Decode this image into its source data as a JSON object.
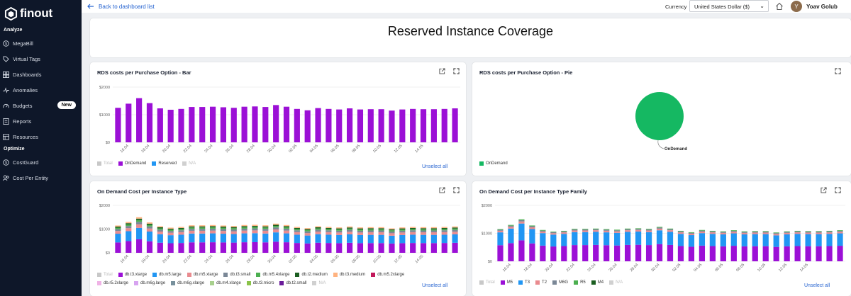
{
  "app": {
    "logo": "finout",
    "title": "Reserved Instance Coverage"
  },
  "sidebar": {
    "section_analyze": "Analyze",
    "section_optimize": "Optimize",
    "items": [
      {
        "label": "MegaBill",
        "icon": "dollar-circle-icon"
      },
      {
        "label": "Virtual Tags",
        "icon": "tag-icon"
      },
      {
        "label": "Dashboards",
        "icon": "grid-icon"
      },
      {
        "label": "Anomalies",
        "icon": "pulse-icon"
      },
      {
        "label": "Budgets",
        "icon": "gauge-icon",
        "badge": "New"
      },
      {
        "label": "Reports",
        "icon": "report-icon"
      },
      {
        "label": "Resources",
        "icon": "list-icon"
      },
      {
        "label": "CostGuard",
        "icon": "shield-dollar-icon"
      },
      {
        "label": "Cost Per Entity",
        "icon": "users-icon"
      }
    ]
  },
  "topbar": {
    "back": "Back to dashboard list",
    "currency_label": "Currency",
    "currency_value": "United States Dollar ($)",
    "user_initial": "Y",
    "user_name": "Yoav Golub"
  },
  "colors": {
    "accent": "#2563d0",
    "ondemand": "#9b10d6",
    "reserved": "#2196f3",
    "pie": "#15b862"
  },
  "widgets": {
    "bar": {
      "title": "RDS costs per Purchase Option - Bar",
      "unselect": "Unselect all"
    },
    "pie": {
      "title": "RDS costs per Purchase Option - Pie"
    },
    "type": {
      "title": "On Demand Cost per Instance Type",
      "unselect": "Unselect all"
    },
    "family": {
      "title": "On Demand Cost per Instance Type Family",
      "unselect": "Unselect all"
    }
  },
  "chart_data": [
    {
      "id": "bar",
      "type": "bar",
      "title": "RDS costs per Purchase Option - Bar",
      "yticks": [
        "$2000",
        "$1000",
        "$0"
      ],
      "ylim": [
        0,
        2000
      ],
      "xticks": [
        "16.04",
        "18.04",
        "20.04",
        "22.04",
        "24.04",
        "26.04",
        "28.04",
        "30.04",
        "02.05",
        "04.05",
        "06.05",
        "08.05",
        "10.05",
        "12.05",
        "14.05"
      ],
      "legend": [
        {
          "name": "Total",
          "color": "#c8c8c8",
          "dim": true
        },
        {
          "name": "OnDemand",
          "color": "#9b10d6"
        },
        {
          "name": "Reserved",
          "color": "#2196f3"
        },
        {
          "name": "N/A",
          "color": "#d0d0d0",
          "dim": true
        }
      ],
      "values": [
        1250,
        1400,
        1600,
        1420,
        1230,
        1180,
        1210,
        1280,
        1280,
        1290,
        1270,
        1250,
        1290,
        1300,
        1280,
        1350,
        1290,
        1210,
        1160,
        1240,
        1210,
        1190,
        1230,
        1190,
        1200,
        1200,
        1150,
        1190,
        1210,
        1200,
        1200,
        1210,
        1230
      ]
    },
    {
      "id": "pie",
      "type": "pie",
      "title": "RDS costs per Purchase Option - Pie",
      "slices": [
        {
          "name": "OnDemand",
          "value": 100,
          "color": "#15b862"
        }
      ],
      "legend": [
        {
          "name": "OnDemand",
          "color": "#15b862"
        }
      ]
    },
    {
      "id": "type",
      "type": "bar",
      "stacked": true,
      "title": "On Demand Cost per Instance Type",
      "yticks": [
        "$2000",
        "$1000",
        "$0"
      ],
      "ylim": [
        0,
        2000
      ],
      "xticks": [
        "16.04",
        "18.04",
        "20.04",
        "22.04",
        "24.04",
        "26.04",
        "28.04",
        "30.04",
        "02.05",
        "04.05",
        "06.05",
        "08.05",
        "10.05",
        "12.05",
        "14.05"
      ],
      "totals": [
        1150,
        1300,
        1500,
        1280,
        1120,
        1060,
        1090,
        1160,
        1160,
        1170,
        1150,
        1130,
        1170,
        1180,
        1160,
        1230,
        1170,
        1090,
        1040,
        1120,
        1090,
        1070,
        1110,
        1070,
        1080,
        1080,
        1030,
        1070,
        1090,
        1080,
        1080,
        1090,
        1110
      ],
      "shares": [
        0.38,
        0.32,
        0.1,
        0.07,
        0.05,
        0.04,
        0.04
      ],
      "share_colors": [
        "#9b10d6",
        "#2196f3",
        "#e98b8f",
        "#7a8796",
        "#4caf50",
        "#1b5e20",
        "#ffb380"
      ],
      "legend": [
        {
          "name": "Total",
          "color": "#c8c8c8",
          "dim": true
        },
        {
          "name": "db.t3.xlarge",
          "color": "#9b10d6"
        },
        {
          "name": "db.m5.large",
          "color": "#2196f3"
        },
        {
          "name": "db.m5.xlarge",
          "color": "#e98b8f"
        },
        {
          "name": "db.t3.small",
          "color": "#7a8796"
        },
        {
          "name": "db.m5.4xlarge",
          "color": "#4caf50"
        },
        {
          "name": "db.t2.medium",
          "color": "#1b5e20"
        },
        {
          "name": "db.t3.medium",
          "color": "#ffb380"
        },
        {
          "name": "db.m5.2xlarge",
          "color": "#c2185b"
        },
        {
          "name": "db.r5.2xlarge",
          "color": "#f0b3e6"
        },
        {
          "name": "db.m6g.large",
          "color": "#d7a3f0"
        },
        {
          "name": "db.m6g.xlarge",
          "color": "#78909c"
        },
        {
          "name": "db.m4.xlarge",
          "color": "#a8d08d"
        },
        {
          "name": "db.t3.micro",
          "color": "#8bc34a"
        },
        {
          "name": "db.t2.small",
          "color": "#6a1b9a"
        },
        {
          "name": "N/A",
          "color": "#d0d0d0",
          "dim": true
        }
      ]
    },
    {
      "id": "family",
      "type": "bar",
      "stacked": true,
      "title": "On Demand Cost per Instance Type Family",
      "yticks": [
        "$2000",
        "$1000",
        "$0"
      ],
      "ylim": [
        0,
        2000
      ],
      "xticks": [
        "16.04",
        "18.04",
        "20.04",
        "22.04",
        "24.04",
        "26.04",
        "28.04",
        "30.04",
        "02.05",
        "04.05",
        "06.05",
        "08.05",
        "10.05",
        "12.05",
        "14.05"
      ],
      "totals": [
        1150,
        1300,
        1500,
        1280,
        1120,
        1060,
        1090,
        1160,
        1160,
        1170,
        1150,
        1130,
        1170,
        1180,
        1160,
        1230,
        1170,
        1090,
        1040,
        1120,
        1090,
        1070,
        1110,
        1070,
        1080,
        1080,
        1030,
        1070,
        1090,
        1080,
        1080,
        1090,
        1110
      ],
      "shares": [
        0.5,
        0.4,
        0.05,
        0.03,
        0.02
      ],
      "share_colors": [
        "#9b10d6",
        "#2196f3",
        "#e98b8f",
        "#7a8796",
        "#4caf50"
      ],
      "legend": [
        {
          "name": "Total",
          "color": "#c8c8c8",
          "dim": true
        },
        {
          "name": "M5",
          "color": "#9b10d6"
        },
        {
          "name": "T3",
          "color": "#2196f3"
        },
        {
          "name": "T2",
          "color": "#e98b8f"
        },
        {
          "name": "M6G",
          "color": "#7a8796"
        },
        {
          "name": "R5",
          "color": "#4caf50"
        },
        {
          "name": "M4",
          "color": "#1b5e20"
        },
        {
          "name": "N/A",
          "color": "#d0d0d0",
          "dim": true
        }
      ]
    }
  ]
}
